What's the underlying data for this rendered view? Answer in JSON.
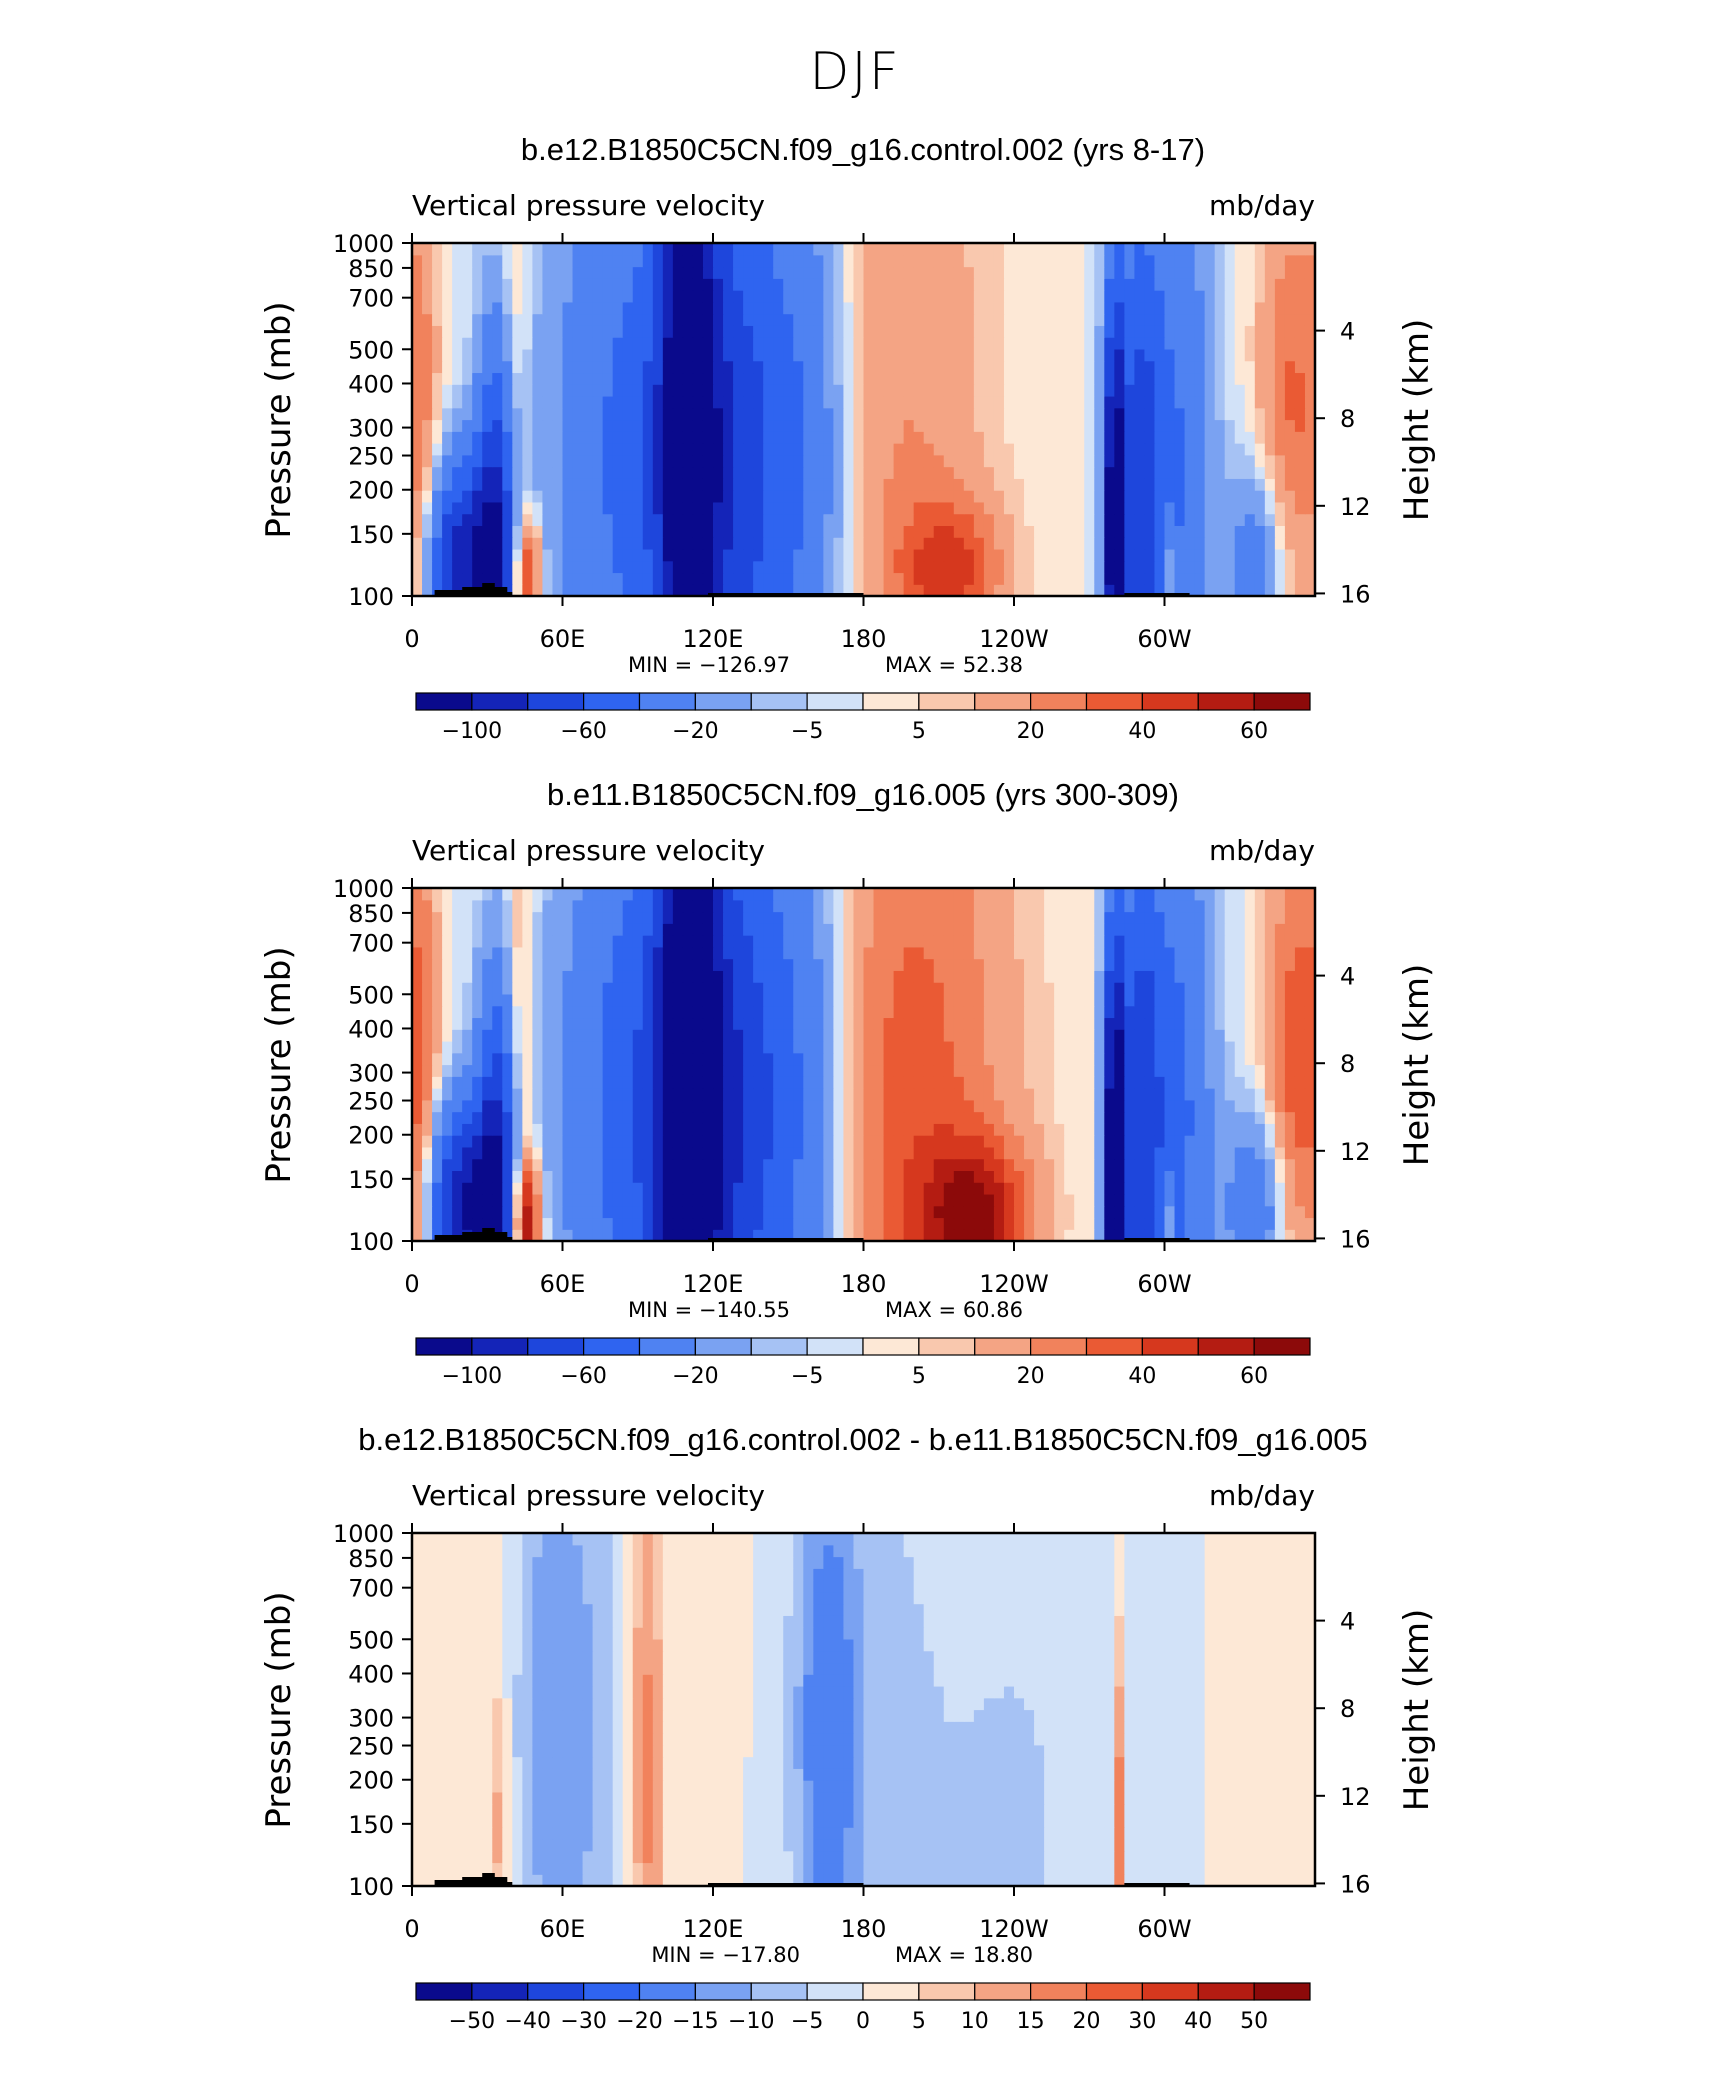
{
  "title": "DJF",
  "common": {
    "left_label": "Vertical pressure velocity",
    "right_label": "mb/day",
    "y_axis_label": "Pressure (mb)",
    "right_axis_label": "Height (km)",
    "pressure_ticks": [
      "100",
      "150",
      "200",
      "250",
      "300",
      "400",
      "500",
      "700",
      "850",
      "1000"
    ],
    "height_ticks": [
      "16",
      "12",
      "8",
      "4"
    ],
    "x_ticks": [
      "0",
      "60E",
      "120E",
      "180",
      "120W",
      "60W"
    ]
  },
  "chart_data": [
    {
      "type": "heatmap",
      "title": "b.e12.B1850C5CN.f09_g16.control.002 (yrs 8-17)",
      "variable": "Vertical pressure velocity",
      "units": "mb/day",
      "min_label": "MIN = −126.97",
      "max_label": "MAX =   52.38",
      "min": -126.97,
      "max": 52.38,
      "xlim": [
        0,
        360
      ],
      "ylim_mb": [
        1000,
        100
      ],
      "colorbar_labels": [
        "−100",
        "−60",
        "−20",
        "−5",
        "5",
        "20",
        "40",
        "60"
      ],
      "colorbar_levels": [
        -120,
        -100,
        -80,
        -60,
        -40,
        -20,
        -10,
        -5,
        0,
        5,
        10,
        20,
        30,
        40,
        50,
        60,
        70
      ],
      "features": [
        {
          "lon": 20,
          "p": 800,
          "value": -90,
          "w": 10,
          "h": 2
        },
        {
          "lon": 34,
          "p": 700,
          "value": -80,
          "w": 6,
          "h": 4
        },
        {
          "lon": 46,
          "p": 870,
          "value": 52,
          "w": 4,
          "h": 1.2
        },
        {
          "lon": 41,
          "p": 420,
          "value": 20,
          "w": 4,
          "h": 6
        },
        {
          "lon": 4,
          "p": 400,
          "value": 20,
          "w": 5,
          "h": 6
        },
        {
          "lon": 90,
          "p": 400,
          "value": -45,
          "w": 25,
          "h": 7
        },
        {
          "lon": 110,
          "p": 350,
          "value": -85,
          "w": 8,
          "h": 8
        },
        {
          "lon": 130,
          "p": 420,
          "value": -60,
          "w": 18,
          "h": 7
        },
        {
          "lon": 160,
          "p": 380,
          "value": -25,
          "w": 12,
          "h": 7
        },
        {
          "lon": 195,
          "p": 300,
          "value": 20,
          "w": 25,
          "h": 9
        },
        {
          "lon": 215,
          "p": 850,
          "value": 35,
          "w": 15,
          "h": 1.5
        },
        {
          "lon": 280,
          "p": 650,
          "value": -120,
          "w": 3,
          "h": 5
        },
        {
          "lon": 290,
          "p": 500,
          "value": -60,
          "w": 6,
          "h": 6
        },
        {
          "lon": 305,
          "p": 450,
          "value": -40,
          "w": 10,
          "h": 7
        },
        {
          "lon": 338,
          "p": 800,
          "value": -35,
          "w": 9,
          "h": 2
        },
        {
          "lon": 301,
          "p": 850,
          "value": 35,
          "w": 2,
          "h": 1
        },
        {
          "lon": 350,
          "p": 330,
          "value": 32,
          "w": 9,
          "h": 5
        }
      ]
    },
    {
      "type": "heatmap",
      "title": "b.e11.B1850C5CN.f09_g16.005 (yrs 300-309)",
      "variable": "Vertical pressure velocity",
      "units": "mb/day",
      "min_label": "MIN = −140.55",
      "max_label": "MAX =   60.86",
      "min": -140.55,
      "max": 60.86,
      "xlim": [
        0,
        360
      ],
      "ylim_mb": [
        1000,
        100
      ],
      "colorbar_labels": [
        "−100",
        "−60",
        "−20",
        "−5",
        "5",
        "20",
        "40",
        "60"
      ],
      "colorbar_levels": [
        -120,
        -100,
        -80,
        -60,
        -40,
        -20,
        -10,
        -5,
        0,
        5,
        10,
        20,
        30,
        40,
        50,
        60,
        70
      ],
      "features": [
        {
          "lon": 20,
          "p": 800,
          "value": -95,
          "w": 10,
          "h": 2
        },
        {
          "lon": 34,
          "p": 700,
          "value": -85,
          "w": 6,
          "h": 4
        },
        {
          "lon": 46,
          "p": 870,
          "value": 60,
          "w": 4,
          "h": 1.2
        },
        {
          "lon": 43,
          "p": 420,
          "value": 25,
          "w": 4,
          "h": 6
        },
        {
          "lon": 4,
          "p": 400,
          "value": 22,
          "w": 5,
          "h": 6
        },
        {
          "lon": 95,
          "p": 400,
          "value": -55,
          "w": 25,
          "h": 7
        },
        {
          "lon": 110,
          "p": 350,
          "value": -90,
          "w": 8,
          "h": 8
        },
        {
          "lon": 130,
          "p": 420,
          "value": -60,
          "w": 18,
          "h": 7
        },
        {
          "lon": 160,
          "p": 400,
          "value": -25,
          "w": 12,
          "h": 7
        },
        {
          "lon": 200,
          "p": 450,
          "value": 35,
          "w": 28,
          "h": 9
        },
        {
          "lon": 225,
          "p": 850,
          "value": 48,
          "w": 15,
          "h": 1.5
        },
        {
          "lon": 280,
          "p": 650,
          "value": -130,
          "w": 3,
          "h": 5
        },
        {
          "lon": 290,
          "p": 500,
          "value": -65,
          "w": 6,
          "h": 6
        },
        {
          "lon": 305,
          "p": 450,
          "value": -45,
          "w": 10,
          "h": 7
        },
        {
          "lon": 338,
          "p": 800,
          "value": -40,
          "w": 9,
          "h": 2
        },
        {
          "lon": 301,
          "p": 850,
          "value": 35,
          "w": 2,
          "h": 1
        },
        {
          "lon": 352,
          "p": 360,
          "value": 38,
          "w": 9,
          "h": 5
        }
      ]
    },
    {
      "type": "heatmap",
      "title": "b.e12.B1850C5CN.f09_g16.control.002 - b.e11.B1850C5CN.f09_g16.005",
      "variable": "Vertical pressure velocity",
      "units": "mb/day",
      "min_label": "MIN = −17.80",
      "max_label": "MAX =   18.80",
      "min": -17.8,
      "max": 18.8,
      "xlim": [
        0,
        360
      ],
      "ylim_mb": [
        1000,
        100
      ],
      "colorbar_labels": [
        "−50",
        "−40",
        "−30",
        "−20",
        "−15",
        "−10",
        "−5",
        "0",
        "5",
        "10",
        "15",
        "20",
        "30",
        "40",
        "50"
      ],
      "colorbar_levels": [
        -60,
        -50,
        -40,
        -30,
        -20,
        -15,
        -10,
        -5,
        0,
        5,
        10,
        15,
        20,
        30,
        40,
        50,
        60
      ],
      "features": [
        {
          "lon": 65,
          "p": 350,
          "value": -12,
          "w": 12,
          "h": 8
        },
        {
          "lon": 50,
          "p": 320,
          "value": -8,
          "w": 6,
          "h": 5
        },
        {
          "lon": 92,
          "p": 350,
          "value": 11,
          "w": 5,
          "h": 7
        },
        {
          "lon": 96,
          "p": 600,
          "value": 8,
          "w": 4,
          "h": 6
        },
        {
          "lon": 35,
          "p": 700,
          "value": 12,
          "w": 2,
          "h": 3
        },
        {
          "lon": 165,
          "p": 350,
          "value": -17,
          "w": 9,
          "h": 6
        },
        {
          "lon": 185,
          "p": 450,
          "value": -7,
          "w": 20,
          "h": 9
        },
        {
          "lon": 240,
          "p": 700,
          "value": -6,
          "w": 22,
          "h": 6
        },
        {
          "lon": 282,
          "p": 700,
          "value": 18,
          "w": 1.5,
          "h": 4
        },
        {
          "lon": 120,
          "p": 300,
          "value": 5,
          "w": 6,
          "h": 6
        },
        {
          "lon": 20,
          "p": 250,
          "value": 4,
          "w": 8,
          "h": 6
        },
        {
          "lon": 325,
          "p": 300,
          "value": 4,
          "w": 10,
          "h": 6
        },
        {
          "lon": 310,
          "p": 300,
          "value": -6,
          "w": 4,
          "h": 4
        }
      ]
    }
  ]
}
